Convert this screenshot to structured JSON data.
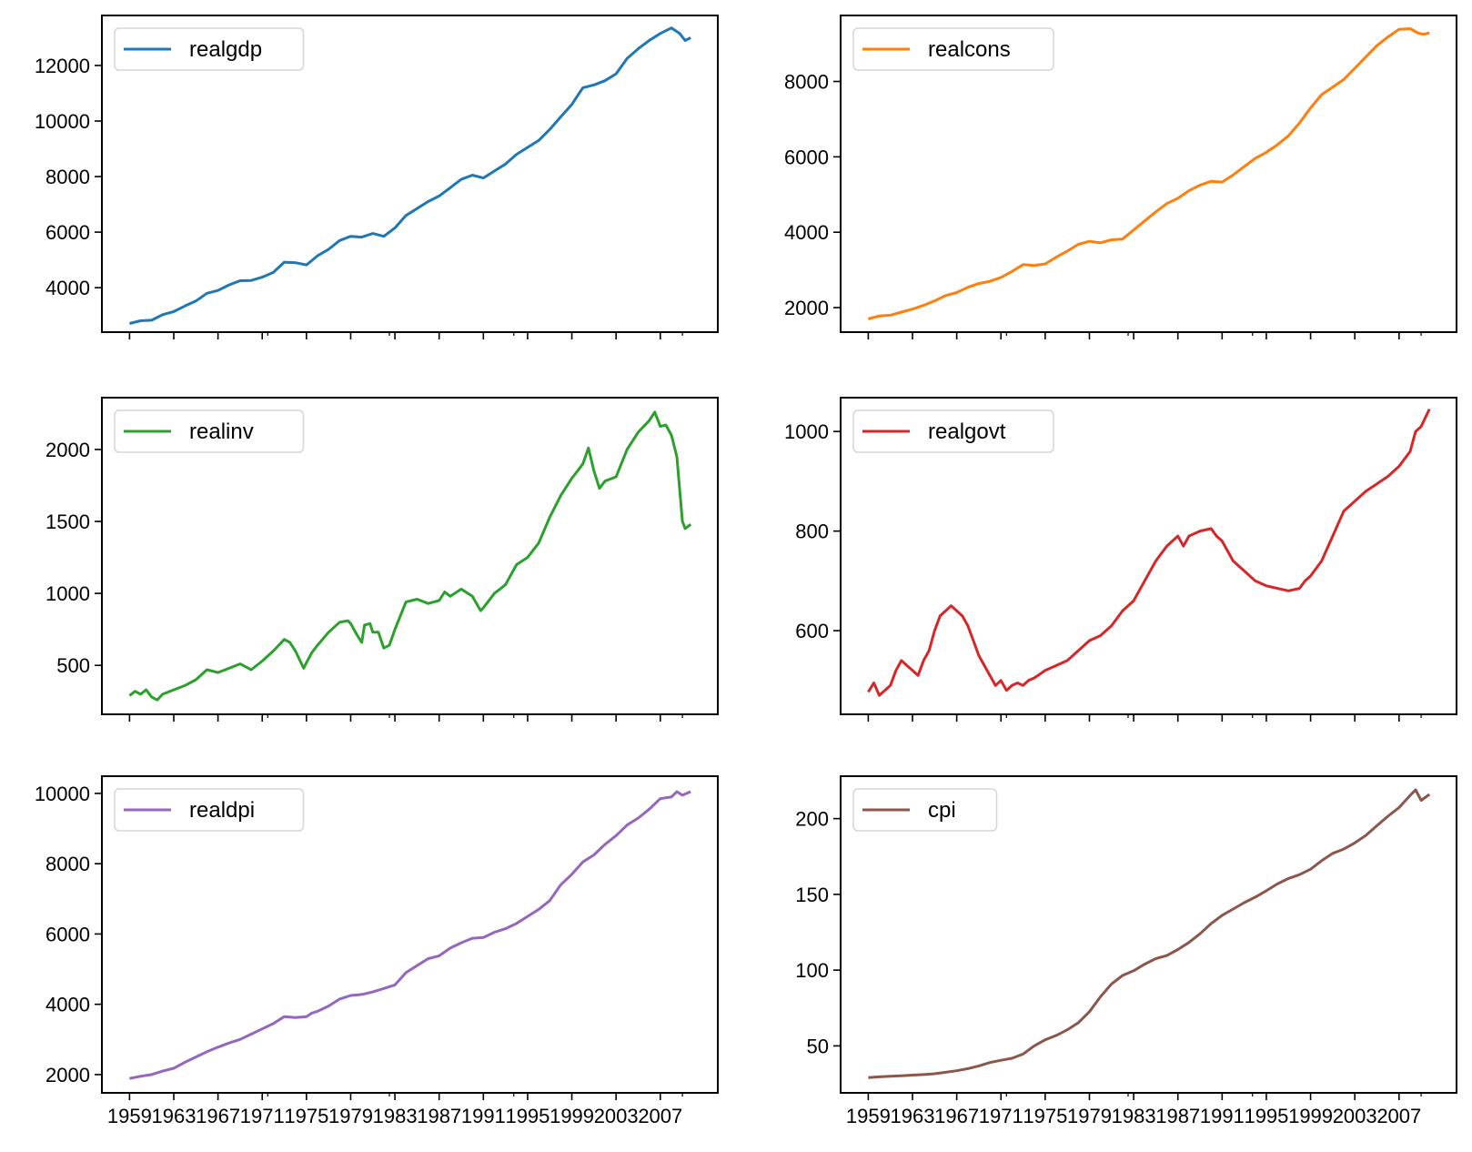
{
  "chart_data": [
    {
      "type": "line",
      "legend": "realgdp",
      "legend_placement": "top-left",
      "color": "#1f77b4",
      "ylim": [
        2400,
        13800
      ],
      "yticks": [
        4000,
        6000,
        8000,
        10000,
        12000
      ],
      "ytick_labels": [
        "4000",
        "6000",
        "8000",
        "10000",
        "12000"
      ],
      "x": [
        1959,
        1960,
        1961,
        1962,
        1963,
        1964,
        1965,
        1966,
        1967,
        1968,
        1969,
        1970,
        1971,
        1972,
        1973,
        1974,
        1975,
        1976,
        1977,
        1978,
        1979,
        1980,
        1981,
        1982,
        1983,
        1984,
        1985,
        1986,
        1987,
        1988,
        1989,
        1990,
        1991,
        1992,
        1993,
        1994,
        1995,
        1996,
        1997,
        1998,
        1999,
        2000,
        2001,
        2002,
        2003,
        2004,
        2005,
        2006,
        2007,
        2008,
        2008.75,
        2009.25,
        2009.75
      ],
      "values": [
        2710,
        2810,
        2830,
        3030,
        3140,
        3340,
        3520,
        3800,
        3900,
        4100,
        4250,
        4260,
        4380,
        4550,
        4920,
        4900,
        4820,
        5150,
        5380,
        5700,
        5850,
        5820,
        5950,
        5850,
        6150,
        6600,
        6850,
        7100,
        7300,
        7600,
        7900,
        8050,
        7950,
        8200,
        8450,
        8800,
        9050,
        9300,
        9700,
        10150,
        10600,
        11200,
        11300,
        11450,
        11700,
        12250,
        12600,
        12900,
        13150,
        13350,
        13150,
        12900,
        13000
      ]
    },
    {
      "type": "line",
      "legend": "realcons",
      "legend_placement": "top-left",
      "color": "#ff7f0e",
      "ylim": [
        1350,
        9750
      ],
      "yticks": [
        2000,
        4000,
        6000,
        8000
      ],
      "ytick_labels": [
        "2000",
        "4000",
        "6000",
        "8000"
      ],
      "x": [
        1959,
        1960,
        1961,
        1962,
        1963,
        1964,
        1965,
        1966,
        1967,
        1968,
        1969,
        1970,
        1971,
        1972,
        1973,
        1974,
        1975,
        1976,
        1977,
        1978,
        1979,
        1980,
        1981,
        1982,
        1983,
        1984,
        1985,
        1986,
        1987,
        1988,
        1989,
        1990,
        1991,
        1992,
        1993,
        1994,
        1995,
        1996,
        1997,
        1998,
        1999,
        2000,
        2001,
        2002,
        2003,
        2004,
        2005,
        2006,
        2007,
        2008,
        2008.75,
        2009.25,
        2009.75
      ],
      "values": [
        1700,
        1780,
        1800,
        1880,
        1960,
        2060,
        2180,
        2320,
        2400,
        2540,
        2640,
        2700,
        2800,
        2960,
        3140,
        3120,
        3160,
        3340,
        3500,
        3680,
        3760,
        3720,
        3800,
        3820,
        4060,
        4300,
        4540,
        4760,
        4900,
        5100,
        5250,
        5350,
        5330,
        5520,
        5740,
        5960,
        6120,
        6320,
        6560,
        6900,
        7300,
        7650,
        7850,
        8050,
        8350,
        8650,
        8950,
        9180,
        9380,
        9400,
        9280,
        9250,
        9290
      ]
    },
    {
      "type": "line",
      "legend": "realinv",
      "legend_placement": "top-left",
      "color": "#2ca02c",
      "ylim": [
        160,
        2360
      ],
      "yticks": [
        500,
        1000,
        1500,
        2000
      ],
      "ytick_labels": [
        "500",
        "1000",
        "1500",
        "2000"
      ],
      "x": [
        1959,
        1959.5,
        1960,
        1960.5,
        1961,
        1961.5,
        1962,
        1963,
        1964,
        1965,
        1966,
        1967,
        1968,
        1969,
        1970,
        1971,
        1972,
        1973,
        1973.5,
        1974,
        1974.75,
        1975,
        1975.5,
        1976,
        1977,
        1978,
        1978.75,
        1979,
        1979.5,
        1980,
        1980.25,
        1980.75,
        1981,
        1981.5,
        1982,
        1982.5,
        1983,
        1984,
        1985,
        1986,
        1987,
        1987.5,
        1988,
        1989,
        1990,
        1990.75,
        1991,
        1992,
        1993,
        1994,
        1995,
        1996,
        1997,
        1998,
        1999,
        2000,
        2000.5,
        2001,
        2001.5,
        2002,
        2003,
        2004,
        2005,
        2006,
        2006.5,
        2007,
        2007.5,
        2008,
        2008.5,
        2009,
        2009.25,
        2009.75
      ],
      "values": [
        290,
        320,
        300,
        330,
        280,
        260,
        300,
        330,
        360,
        400,
        470,
        450,
        480,
        510,
        470,
        530,
        600,
        680,
        660,
        600,
        480,
        520,
        590,
        640,
        730,
        800,
        810,
        790,
        720,
        660,
        780,
        790,
        730,
        730,
        620,
        640,
        750,
        940,
        960,
        930,
        950,
        1010,
        980,
        1030,
        980,
        880,
        900,
        1000,
        1060,
        1200,
        1250,
        1350,
        1530,
        1680,
        1800,
        1900,
        2010,
        1850,
        1730,
        1780,
        1810,
        2000,
        2120,
        2200,
        2260,
        2160,
        2170,
        2100,
        1950,
        1500,
        1450,
        1480
      ]
    },
    {
      "type": "line",
      "legend": "realgovt",
      "legend_placement": "top-left",
      "color": "#d62728",
      "ylim": [
        432,
        1068
      ],
      "yticks": [
        600,
        800,
        1000
      ],
      "ytick_labels": [
        "600",
        "800",
        "1000"
      ],
      "x": [
        1959,
        1959.5,
        1960,
        1960.5,
        1961,
        1961.5,
        1962,
        1962.5,
        1963,
        1963.5,
        1964,
        1964.5,
        1965,
        1965.5,
        1966,
        1966.5,
        1967,
        1967.5,
        1968,
        1968.5,
        1969,
        1969.5,
        1970,
        1970.5,
        1971,
        1971.5,
        1972,
        1972.5,
        1973,
        1973.5,
        1974,
        1975,
        1976,
        1977,
        1978,
        1979,
        1980,
        1981,
        1982,
        1983,
        1984,
        1985,
        1986,
        1986.5,
        1987,
        1987.5,
        1988,
        1989,
        1990,
        1990.5,
        1991,
        1992,
        1993,
        1994,
        1995,
        1996,
        1997,
        1998,
        1998.5,
        1999,
        2000,
        2001,
        2002,
        2003,
        2004,
        2005,
        2006,
        2007,
        2008,
        2008.5,
        2009,
        2009.75
      ],
      "values": [
        477,
        495,
        470,
        480,
        490,
        520,
        540,
        530,
        520,
        510,
        540,
        560,
        600,
        630,
        640,
        650,
        640,
        630,
        610,
        580,
        550,
        530,
        510,
        490,
        500,
        480,
        490,
        495,
        490,
        500,
        505,
        520,
        530,
        540,
        560,
        580,
        590,
        610,
        640,
        660,
        700,
        740,
        770,
        780,
        790,
        770,
        790,
        800,
        805,
        790,
        780,
        740,
        720,
        700,
        690,
        685,
        680,
        685,
        700,
        710,
        740,
        790,
        840,
        860,
        880,
        895,
        910,
        930,
        960,
        1000,
        1010,
        1045
      ]
    },
    {
      "type": "line",
      "legend": "realdpi",
      "legend_placement": "top-left",
      "color": "#9467bd",
      "ylim": [
        1480,
        10490
      ],
      "yticks": [
        2000,
        4000,
        6000,
        8000,
        10000
      ],
      "ytick_labels": [
        "2000",
        "4000",
        "6000",
        "8000",
        "10000"
      ],
      "x": [
        1959,
        1960,
        1961,
        1962,
        1963,
        1964,
        1965,
        1966,
        1967,
        1968,
        1969,
        1970,
        1971,
        1972,
        1973,
        1974,
        1975,
        1975.5,
        1976,
        1977,
        1978,
        1979,
        1980,
        1981,
        1982,
        1983,
        1984,
        1985,
        1986,
        1987,
        1988,
        1989,
        1990,
        1991,
        1992,
        1993,
        1994,
        1995,
        1996,
        1997,
        1998,
        1999,
        2000,
        2001,
        2002,
        2003,
        2004,
        2005,
        2006,
        2007,
        2008,
        2008.5,
        2009,
        2009.75
      ],
      "values": [
        1890,
        1950,
        2000,
        2100,
        2180,
        2350,
        2500,
        2650,
        2780,
        2900,
        3000,
        3150,
        3300,
        3450,
        3650,
        3620,
        3650,
        3750,
        3800,
        3950,
        4150,
        4250,
        4280,
        4350,
        4450,
        4550,
        4900,
        5100,
        5300,
        5380,
        5600,
        5750,
        5880,
        5900,
        6050,
        6150,
        6300,
        6500,
        6700,
        6950,
        7400,
        7700,
        8050,
        8250,
        8550,
        8800,
        9100,
        9300,
        9550,
        9850,
        9900,
        10050,
        9950,
        10050
      ]
    },
    {
      "type": "line",
      "legend": "cpi",
      "legend_placement": "top-left",
      "color": "#8c564b",
      "ylim": [
        19,
        228
      ],
      "yticks": [
        50,
        100,
        150,
        200
      ],
      "ytick_labels": [
        "50",
        "100",
        "150",
        "200"
      ],
      "x": [
        1959,
        1960,
        1961,
        1962,
        1963,
        1964,
        1965,
        1966,
        1967,
        1968,
        1969,
        1970,
        1971,
        1972,
        1973,
        1974,
        1975,
        1976,
        1977,
        1978,
        1979,
        1980,
        1981,
        1982,
        1983,
        1984,
        1985,
        1986,
        1987,
        1988,
        1989,
        1990,
        1991,
        1992,
        1993,
        1994,
        1995,
        1996,
        1997,
        1998,
        1999,
        2000,
        2001,
        2002,
        2003,
        2004,
        2005,
        2006,
        2007,
        2008,
        2008.5,
        2009,
        2009.75
      ],
      "values": [
        29,
        29.6,
        30,
        30.3,
        30.7,
        31.1,
        31.6,
        32.6,
        33.6,
        35,
        36.8,
        39,
        40.5,
        41.8,
        44.6,
        50,
        54,
        56.9,
        60.6,
        65.3,
        72.6,
        82.4,
        90.9,
        96.5,
        99.6,
        103.9,
        107.6,
        109.6,
        113.6,
        118.3,
        124,
        130.7,
        136.2,
        140.3,
        144.5,
        148.2,
        152.4,
        156.9,
        160.5,
        163,
        166.6,
        172.2,
        177.1,
        179.9,
        184,
        188.9,
        195.3,
        201.6,
        207.3,
        215.3,
        219,
        212,
        216
      ]
    }
  ],
  "xaxis": {
    "ticks": [
      1959,
      1963,
      1967,
      1971,
      1975,
      1979,
      1983,
      1987,
      1991,
      1995,
      1999,
      2003,
      2007
    ],
    "tick_labels": [
      "1959",
      "1963",
      "1967",
      "1971",
      "1975",
      "1979",
      "1983",
      "1987",
      "1991",
      "1995",
      "1999",
      "2003",
      "2007"
    ],
    "minor_ticks": [
      1971.5,
      1982.5,
      1993.75,
      2009
    ],
    "xlim": [
      1956.5,
      2012.2
    ]
  }
}
